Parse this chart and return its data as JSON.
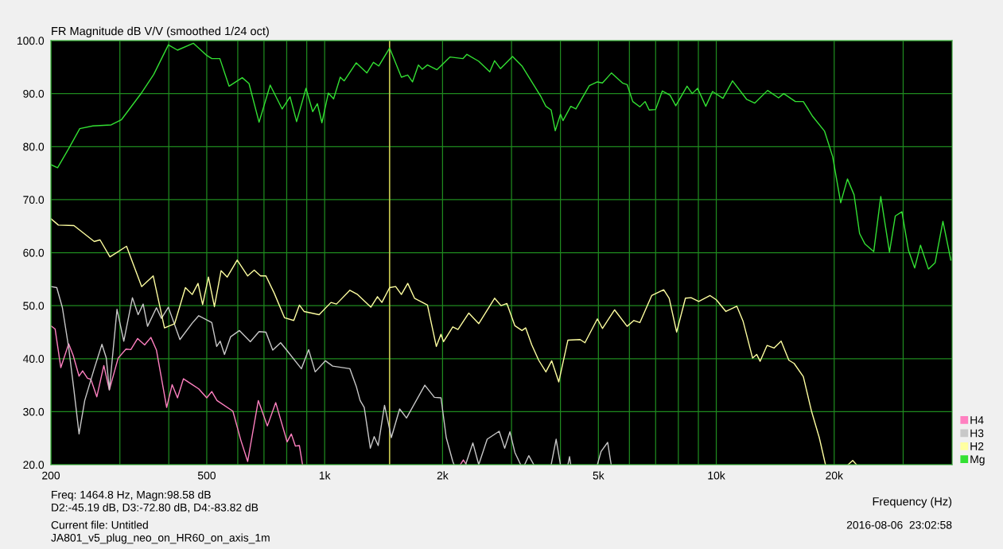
{
  "chart_data": {
    "type": "line",
    "title": "FR Magnitude dB V/V (smoothed 1/24 oct)",
    "xlabel": "Frequency (Hz)",
    "log": "x",
    "grid": true,
    "legend": "bottom right",
    "line_style": "solid",
    "marker": "none",
    "xlim": [
      200,
      40000
    ],
    "xticks": [
      200,
      {
        "value": 300,
        "label": null
      },
      {
        "value": 400,
        "label": null
      },
      500,
      {
        "value": 600,
        "label": null
      },
      {
        "value": 700,
        "label": null
      },
      {
        "value": 800,
        "label": null
      },
      {
        "value": 900,
        "label": null
      },
      {
        "value": 1000,
        "label": "1k"
      },
      {
        "value": 2000,
        "label": "2k"
      },
      {
        "value": 3000,
        "label": null
      },
      {
        "value": 4000,
        "label": null
      },
      {
        "value": 5000,
        "label": "5k"
      },
      {
        "value": 6000,
        "label": null
      },
      {
        "value": 7000,
        "label": null
      },
      {
        "value": 8000,
        "label": null
      },
      {
        "value": 9000,
        "label": null
      },
      {
        "value": 10000,
        "label": "10k"
      },
      {
        "value": 20000,
        "label": "20k"
      },
      {
        "value": 30000,
        "label": null
      }
    ],
    "ylim": [
      20,
      100
    ],
    "yticks": [
      {
        "value": 20,
        "label": "20.0"
      },
      {
        "value": 30,
        "label": "30.0"
      },
      {
        "value": 40,
        "label": "40.0"
      },
      {
        "value": 50,
        "label": "50.0"
      },
      {
        "value": 60,
        "label": "60.0"
      },
      {
        "value": 70,
        "label": "70.0"
      },
      {
        "value": 80,
        "label": "80.0"
      },
      {
        "value": 90,
        "label": "90.0"
      },
      {
        "value": 100,
        "label": "100.0"
      }
    ],
    "ref_lines": [
      {
        "axis": "x",
        "value": 1464.8,
        "color": "#c8c850"
      }
    ],
    "annotations": [
      "Freq: 1464.8 Hz, Magn:98.58 dB",
      "D2:-45.19 dB, D3:-72.80 dB, D4:-83.82 dB",
      "Current file: Untitled",
      "JA801_v5_plug_neo_on_HR60_on_axis_1m",
      "2016-08-06  23:02:58"
    ],
    "series": [
      {
        "name": "H4",
        "color": "#ff80c0",
        "x": [
          200,
          205,
          212,
          222,
          228,
          236,
          241,
          248,
          253,
          262,
          273,
          282,
          297,
          311,
          320,
          333,
          347,
          360,
          372,
          395,
          408,
          421,
          436,
          455,
          477,
          500,
          515,
          531,
          583,
          611,
          636,
          677,
          714,
          750,
          802,
          822,
          842,
          862,
          878,
          1500,
          2220,
          2260,
          2300
        ],
        "values": [
          46.2,
          45.6,
          38.3,
          42.8,
          40.6,
          36.7,
          37.7,
          36.3,
          36.1,
          32.8,
          38.7,
          34.1,
          40.1,
          41.8,
          41.7,
          43.8,
          42.6,
          44.0,
          41.6,
          30.8,
          35.1,
          32.6,
          36.2,
          35.3,
          34.3,
          32.6,
          33.8,
          32.1,
          30.1,
          24.6,
          20.6,
          32.1,
          27.3,
          31.7,
          24.3,
          25.8,
          23.5,
          23.6,
          20.0,
          null,
          20.0,
          20.9,
          20.0
        ]
      },
      {
        "name": "H3",
        "color": "#c8c8c8",
        "x": [
          200,
          207,
          214,
          222,
          229,
          236,
          244,
          258,
          270,
          277,
          282,
          295,
          307,
          323,
          334,
          344,
          353,
          372,
          383,
          399,
          427,
          459,
          477,
          515,
          530,
          541,
          555,
          575,
          606,
          646,
          680,
          708,
          737,
          772,
          802,
          872,
          910,
          946,
          1004,
          1048,
          1160,
          1204,
          1232,
          1262,
          1308,
          1338,
          1370,
          1422,
          1465,
          1480,
          1554,
          1618,
          1802,
          1906,
          1982,
          2044,
          2124,
          2140,
          2200,
          2290,
          2390,
          2474,
          2600,
          2790,
          2882,
          2972,
          3060,
          3166,
          3200,
          3240,
          3320,
          3420,
          3500,
          3788,
          3900,
          4000,
          4100,
          4180,
          4220,
          4250,
          4500,
          4970,
          5080,
          5280,
          5390
        ],
        "values": [
          53.6,
          53.4,
          49.6,
          42.1,
          34.1,
          25.8,
          32.1,
          38.1,
          42.7,
          40.1,
          34.1,
          49.3,
          43.3,
          51.5,
          48.3,
          50.3,
          46.1,
          49.6,
          47.6,
          49.7,
          43.6,
          46.7,
          48.1,
          46.8,
          42.3,
          43.3,
          40.8,
          44.1,
          45.3,
          43.2,
          45.1,
          45.0,
          41.6,
          43.0,
          41.5,
          38.1,
          41.7,
          37.5,
          39.6,
          38.6,
          38.1,
          34.8,
          32.1,
          30.8,
          23.1,
          25.3,
          23.6,
          31.2,
          26.7,
          25.1,
          30.5,
          28.8,
          35.0,
          32.7,
          32.6,
          25.1,
          20.6,
          20.0,
          null,
          20.0,
          24.1,
          20.0,
          24.8,
          26.3,
          23.1,
          26.2,
          22.3,
          20.0,
          null,
          20.0,
          21.7,
          20.0,
          null,
          20.0,
          24.8,
          20.0,
          null,
          20.0,
          21.5,
          20.0,
          null,
          20.0,
          22.5,
          24.2,
          20.0
        ]
      },
      {
        "name": "H2",
        "color": "#ffffa0",
        "x": [
          200,
          209,
          229,
          258,
          267,
          283,
          312,
          341,
          365,
          390,
          414,
          441,
          459,
          475,
          488,
          505,
          523,
          544,
          564,
          598,
          636,
          661,
          686,
          708,
          743,
          790,
          834,
          862,
          886,
          968,
          1038,
          1072,
          1160,
          1214,
          1312,
          1364,
          1400,
          1465,
          1518,
          1570,
          1630,
          1696,
          1830,
          1928,
          1982,
          2012,
          2124,
          2190,
          2334,
          2474,
          2716,
          2820,
          2920,
          3060,
          3190,
          3260,
          3380,
          3520,
          3672,
          3800,
          3960,
          4180,
          4490,
          4620,
          4970,
          5120,
          5500,
          5920,
          6160,
          6380,
          6840,
          7340,
          7580,
          7920,
          8340,
          8620,
          9020,
          9640,
          10000,
          10580,
          11280,
          11700,
          12380,
          12680,
          12940,
          13480,
          14040,
          14640,
          15320,
          15800,
          16680,
          17500,
          18320,
          19000,
          20500,
          21700,
          22300,
          22800
        ],
        "values": [
          66.4,
          65.2,
          65.1,
          62.1,
          62.4,
          59.2,
          61.2,
          53.6,
          55.6,
          45.8,
          46.6,
          53.4,
          52.1,
          54.2,
          50.2,
          55.4,
          49.8,
          56.6,
          55.4,
          58.6,
          55.6,
          56.7,
          55.6,
          55.6,
          52.4,
          47.7,
          47.2,
          50.1,
          48.9,
          48.3,
          50.6,
          50.3,
          52.9,
          52.1,
          49.7,
          51.7,
          50.6,
          53.4,
          53.6,
          52.1,
          54.2,
          51.4,
          50.1,
          42.3,
          44.6,
          43.2,
          46.0,
          45.5,
          48.6,
          46.6,
          51.4,
          50.0,
          50.4,
          46.2,
          45.3,
          45.8,
          42.6,
          39.7,
          37.5,
          39.6,
          35.6,
          43.5,
          43.6,
          43.0,
          47.5,
          45.7,
          49.2,
          46.1,
          47.2,
          46.8,
          51.9,
          53.0,
          51.4,
          45.0,
          51.4,
          51.5,
          50.8,
          51.9,
          51.1,
          48.9,
          49.9,
          47.1,
          40.1,
          40.8,
          39.5,
          42.5,
          42.0,
          43.3,
          39.7,
          39.1,
          36.6,
          30.1,
          25.1,
          20.0,
          null,
          20.0,
          20.8,
          20.0
        ]
      },
      {
        "name": "Mg",
        "color": "#33e033",
        "x": [
          200,
          208,
          222,
          237,
          256,
          285,
          303,
          339,
          366,
          399,
          421,
          462,
          500,
          515,
          540,
          570,
          616,
          641,
          680,
          726,
          779,
          816,
          848,
          896,
          932,
          958,
          984,
          1022,
          1054,
          1096,
          1122,
          1204,
          1282,
          1332,
          1375,
          1465,
          1570,
          1630,
          1676,
          1735,
          1775,
          1830,
          1934,
          2088,
          2254,
          2308,
          2474,
          2640,
          2716,
          2812,
          3018,
          3190,
          3556,
          3672,
          3788,
          3880,
          4000,
          4060,
          4250,
          4380,
          4740,
          4970,
          5120,
          5400,
          5760,
          5920,
          6120,
          6380,
          6580,
          6740,
          7000,
          7280,
          7620,
          7880,
          8420,
          8680,
          8960,
          9400,
          9780,
          10400,
          11000,
          11960,
          12540,
          13520,
          14420,
          14860,
          15920,
          16680,
          17620,
          18900,
          19820,
          20780,
          21620,
          22480,
          23220,
          23980,
          25240,
          26300,
          27680,
          28640,
          29780,
          30960,
          32100,
          33220,
          34800,
          36200,
          37900,
          39700
        ],
        "values": [
          76.6,
          76.0,
          79.6,
          83.4,
          83.9,
          84.1,
          85.1,
          89.9,
          93.6,
          99.2,
          98.2,
          99.5,
          97.2,
          96.6,
          96.6,
          91.4,
          93.0,
          91.9,
          84.6,
          91.6,
          87.1,
          89.4,
          84.7,
          91.0,
          86.6,
          88.1,
          84.5,
          90.1,
          89.0,
          93.1,
          92.4,
          95.8,
          93.9,
          95.9,
          95.2,
          98.6,
          93.1,
          93.5,
          92.2,
          95.4,
          94.6,
          95.4,
          94.5,
          96.9,
          96.6,
          97.4,
          96.1,
          94.1,
          96.2,
          94.7,
          97.0,
          95.2,
          89.6,
          87.6,
          86.9,
          83.0,
          86.1,
          84.9,
          87.6,
          87.1,
          91.5,
          92.2,
          92.0,
          93.9,
          92.0,
          91.7,
          88.5,
          87.5,
          88.5,
          86.9,
          87.0,
          90.5,
          89.7,
          87.7,
          91.4,
          90.0,
          91.0,
          87.6,
          90.4,
          89.1,
          92.4,
          88.9,
          88.2,
          90.6,
          89.2,
          90.0,
          88.5,
          88.5,
          85.7,
          82.9,
          78.1,
          69.4,
          73.9,
          70.9,
          63.6,
          61.6,
          60.2,
          70.6,
          60.1,
          66.9,
          67.7,
          60.4,
          57.1,
          61.4,
          56.9,
          58.1,
          65.9,
          58.6
        ]
      }
    ]
  }
}
